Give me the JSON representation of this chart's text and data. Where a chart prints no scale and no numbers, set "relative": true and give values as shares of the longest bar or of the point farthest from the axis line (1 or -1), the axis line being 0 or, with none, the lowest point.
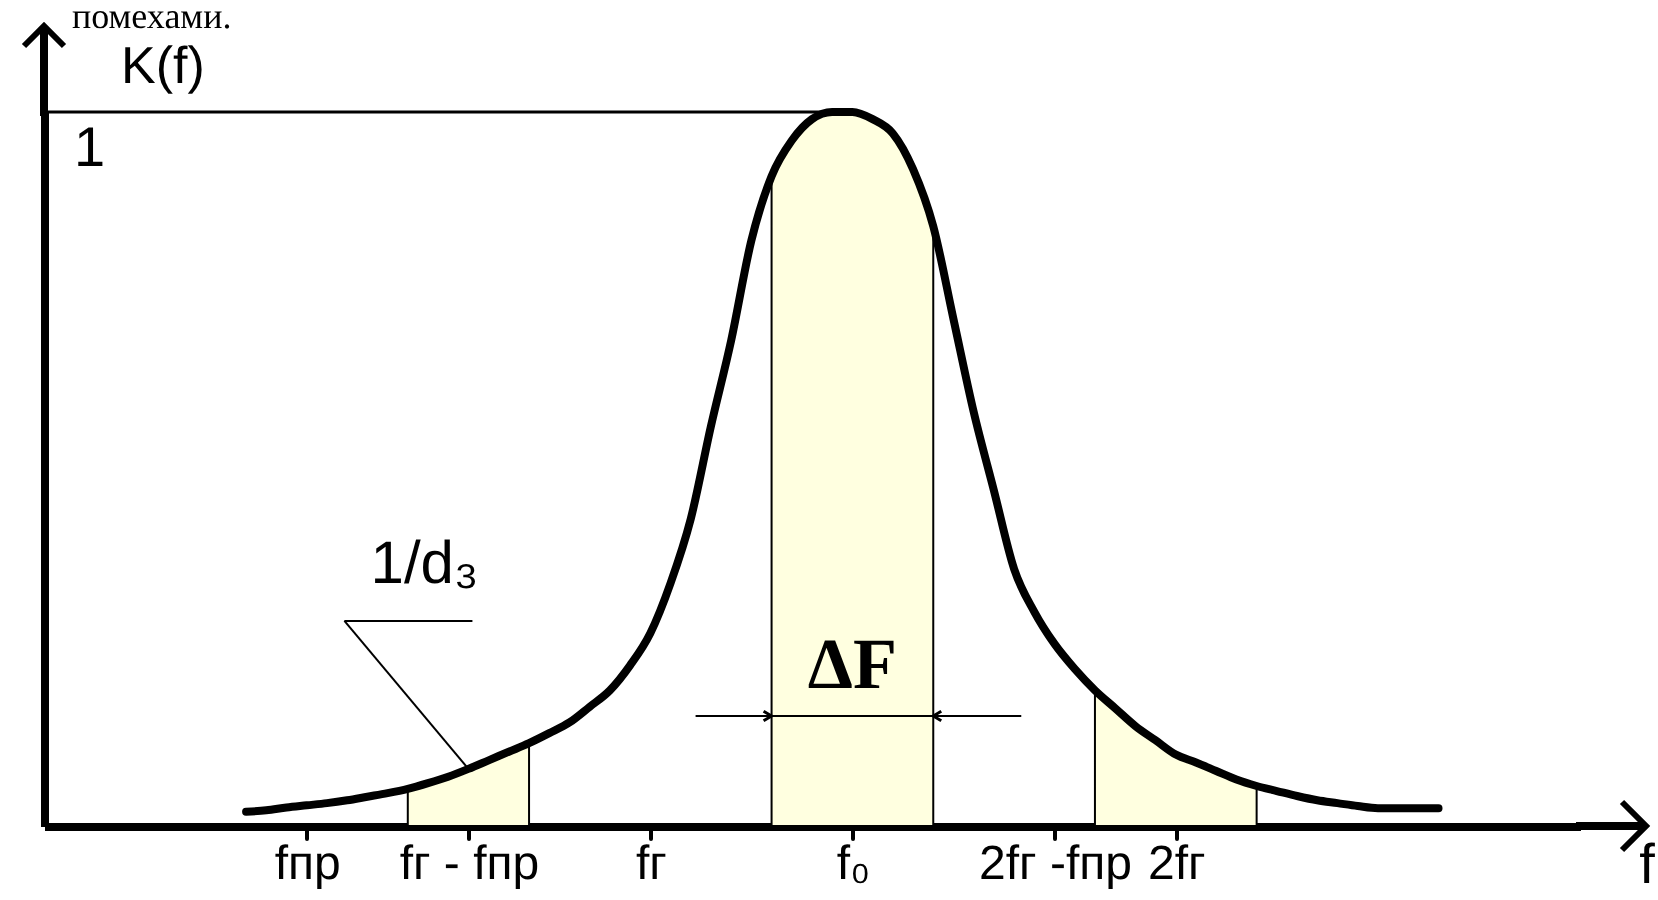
{
  "chart_data": {
    "type": "line",
    "relative": true,
    "xlabel": "f",
    "ylabel": "K(f)",
    "categories": [
      null,
      null,
      null,
      null,
      null,
      null,
      null,
      null,
      null,
      null,
      null,
      null,
      null,
      "fпр",
      null,
      null,
      null,
      null,
      null,
      null,
      null,
      "fг - fпр",
      null,
      null,
      null,
      null,
      null,
      null,
      null,
      null,
      "fг",
      null,
      null,
      null,
      null,
      null,
      null,
      null,
      null,
      null,
      "f₀",
      null,
      null,
      null,
      null,
      null,
      null,
      null,
      null,
      null,
      "2fг -fпр",
      null,
      null,
      null,
      null,
      null,
      "2fг",
      null,
      null,
      null,
      null,
      null,
      null,
      null,
      null,
      null,
      null,
      null,
      null,
      null,
      null,
      null,
      null,
      null,
      null,
      null,
      null
    ],
    "series": [
      {
        "type": "area",
        "color": "#ffffe0",
        "values": [
          null,
          null,
          null,
          null,
          null,
          null,
          null,
          null,
          null,
          null,
          null,
          null,
          null,
          null,
          null,
          null,
          null,
          null,
          0.052,
          0.06,
          0.069,
          0.08,
          0.092,
          0.104,
          0.116,
          null,
          null,
          null,
          null,
          null,
          null,
          null,
          null,
          null,
          null,
          null,
          null,
          null,
          null,
          null,
          null,
          null,
          null,
          null,
          null,
          null,
          null,
          null,
          null,
          null,
          null,
          null,
          null,
          null,
          null,
          null,
          null,
          null,
          null,
          null,
          null,
          null,
          null,
          null,
          null,
          null,
          null,
          null,
          null,
          null,
          null,
          null,
          null,
          null,
          null,
          null,
          null
        ]
      },
      {
        "type": "area",
        "color": "#ffffe0",
        "values": [
          null,
          null,
          null,
          null,
          null,
          null,
          null,
          null,
          null,
          null,
          null,
          null,
          null,
          null,
          null,
          null,
          null,
          null,
          null,
          null,
          null,
          null,
          null,
          null,
          null,
          null,
          null,
          null,
          null,
          null,
          null,
          null,
          null,
          null,
          null,
          null,
          0.91,
          0.96,
          0.99,
          1.0,
          1.0,
          0.99,
          0.97,
          0.92,
          0.84,
          null,
          null,
          null,
          null,
          null,
          null,
          null,
          null,
          null,
          null,
          null,
          null,
          null,
          null,
          null,
          null,
          null,
          null,
          null,
          null,
          null,
          null,
          null,
          null,
          null,
          null,
          null,
          null,
          null,
          null,
          null,
          null
        ]
      },
      {
        "type": "area",
        "color": "#ffffe0",
        "values": [
          null,
          null,
          null,
          null,
          null,
          null,
          null,
          null,
          null,
          null,
          null,
          null,
          null,
          null,
          null,
          null,
          null,
          null,
          null,
          null,
          null,
          null,
          null,
          null,
          null,
          null,
          null,
          null,
          null,
          null,
          null,
          null,
          null,
          null,
          null,
          null,
          null,
          null,
          null,
          null,
          null,
          null,
          null,
          null,
          null,
          null,
          null,
          null,
          null,
          null,
          null,
          null,
          0.19,
          0.165,
          0.14,
          0.12,
          0.1,
          0.089,
          0.077,
          0.065,
          0.056,
          null,
          null,
          null,
          null,
          null,
          null,
          null,
          null,
          null,
          null,
          null,
          null,
          null,
          null,
          null,
          null
        ]
      },
      {
        "color": "#000000",
        "values": [
          null,
          null,
          null,
          null,
          null,
          null,
          null,
          null,
          null,
          null,
          0.02,
          0.022,
          0.026,
          0.029,
          0.032,
          0.036,
          0.041,
          0.046,
          0.052,
          0.06,
          0.069,
          0.08,
          0.092,
          0.104,
          0.116,
          0.13,
          0.145,
          0.167,
          0.19,
          0.225,
          0.27,
          0.34,
          0.43,
          0.56,
          0.68,
          0.82,
          0.91,
          0.96,
          0.99,
          1.0,
          1.0,
          0.99,
          0.97,
          0.92,
          0.84,
          0.71,
          0.58,
          0.47,
          0.36,
          0.3,
          0.255,
          0.22,
          0.19,
          0.165,
          0.14,
          0.12,
          0.1,
          0.089,
          0.077,
          0.065,
          0.056,
          0.049,
          0.042,
          0.036,
          0.032,
          0.028,
          0.025,
          0.025,
          0.025,
          0.025,
          null,
          null,
          null,
          null,
          null,
          null,
          null
        ]
      }
    ],
    "ref_lines": [
      {
        "axis": "y",
        "value": 1,
        "label": "1"
      }
    ],
    "annotations": [
      {
        "text": "1/d₃",
        "x": "fг - fпр",
        "y": 0.08
      },
      "ΔF",
      "помехами."
    ]
  }
}
